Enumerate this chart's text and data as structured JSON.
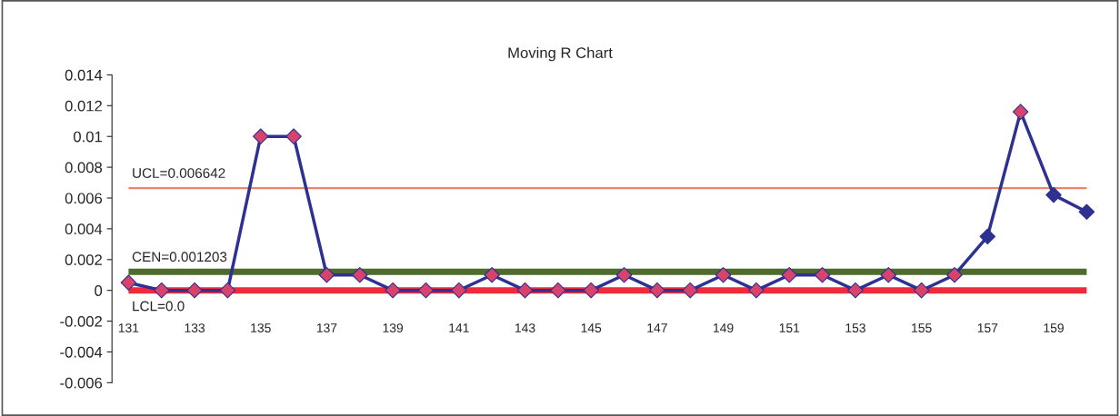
{
  "chart_data": {
    "type": "line",
    "title": "Moving R Chart",
    "categories": [
      "131",
      null,
      "133",
      null,
      "135",
      null,
      "137",
      null,
      "139",
      null,
      "141",
      null,
      "143",
      null,
      "145",
      null,
      "147",
      null,
      "149",
      null,
      "151",
      null,
      "153",
      null,
      "155",
      null,
      "157",
      null,
      "159",
      null
    ],
    "series": [
      {
        "color": "#2e3192",
        "values": [
          0.0005,
          0,
          0,
          0,
          0.01,
          0.01,
          0.001,
          0.001,
          0,
          0,
          0,
          0.001,
          0,
          0,
          0,
          0.001,
          0,
          0,
          0.001,
          0,
          0.001,
          0.001,
          0,
          0.001,
          0,
          0.001,
          0.0035,
          0.0116,
          0.0062,
          0.0051
        ],
        "colors": [
          "#d9436b",
          "#d9436b",
          "#d9436b",
          "#d9436b",
          "#d9436b",
          "#d9436b",
          "#d9436b",
          "#d9436b",
          "#d9436b",
          "#d9436b",
          "#d9436b",
          "#d9436b",
          "#d9436b",
          "#d9436b",
          "#d9436b",
          "#d9436b",
          "#d9436b",
          "#d9436b",
          "#d9436b",
          "#d9436b",
          "#d9436b",
          "#d9436b",
          "#d9436b",
          "#d9436b",
          "#d9436b",
          "#d9436b",
          "#2e3192",
          "#d9436b",
          "#2e3192",
          "#2e3192"
        ]
      }
    ],
    "ylim": [
      -0.006,
      0.014
    ],
    "yticks": [
      -0.006,
      -0.004,
      -0.002,
      0,
      0.002,
      0.004,
      0.006,
      0.008,
      0.01,
      0.012,
      0.014
    ],
    "ref_lines": [
      {
        "axis": "y",
        "value": 0.006642,
        "label": "UCL=0.006642",
        "color": "#f08070"
      },
      {
        "axis": "y",
        "value": 0.001203,
        "label": "CEN=0.001203",
        "color": "#4d6b2a"
      },
      {
        "axis": "y",
        "value": 0,
        "label": "LCL=0.0",
        "color": "#ee2a3c"
      }
    ],
    "marker": "diamond",
    "line_style": "solid",
    "grid": false,
    "legend": false
  }
}
